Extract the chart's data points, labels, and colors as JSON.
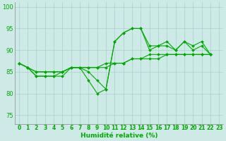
{
  "xlabel": "Humidité relative (%)",
  "xlim": [
    -0.5,
    23.5
  ],
  "ylim": [
    73,
    101
  ],
  "yticks": [
    75,
    80,
    85,
    90,
    95,
    100
  ],
  "xticks": [
    0,
    1,
    2,
    3,
    4,
    5,
    6,
    7,
    8,
    9,
    10,
    11,
    12,
    13,
    14,
    15,
    16,
    17,
    18,
    19,
    20,
    21,
    22,
    23
  ],
  "background_color": "#ceeae6",
  "grid_color": "#aacfcc",
  "line_color": "#00aa00",
  "lines": [
    {
      "x": [
        0,
        1,
        2,
        3,
        4,
        5,
        6,
        7,
        8,
        9,
        10,
        11,
        12,
        13,
        14,
        15,
        16,
        17,
        18,
        19,
        20,
        21,
        22
      ],
      "y": [
        87,
        86,
        84,
        84,
        84,
        84,
        86,
        86,
        83,
        80,
        81,
        92,
        94,
        95,
        95,
        90,
        91,
        92,
        90,
        92,
        91,
        92,
        89
      ]
    },
    {
      "x": [
        0,
        1,
        2,
        3,
        4,
        5,
        6,
        7,
        8,
        9,
        10,
        11,
        12,
        13,
        14,
        15,
        16,
        17,
        18,
        19,
        20,
        21,
        22
      ],
      "y": [
        87,
        86,
        84,
        84,
        84,
        85,
        86,
        86,
        85,
        83,
        81,
        92,
        94,
        95,
        95,
        91,
        91,
        91,
        90,
        92,
        90,
        91,
        89
      ]
    },
    {
      "x": [
        0,
        1,
        2,
        3,
        4,
        5,
        6,
        7,
        8,
        9,
        10,
        11,
        12,
        13,
        14,
        15,
        16,
        17,
        18,
        19,
        20,
        21,
        22
      ],
      "y": [
        87,
        86,
        85,
        85,
        85,
        85,
        86,
        86,
        86,
        86,
        86,
        87,
        87,
        88,
        88,
        89,
        89,
        89,
        89,
        89,
        89,
        89,
        89
      ]
    },
    {
      "x": [
        0,
        1,
        2,
        3,
        4,
        5,
        6,
        7,
        8,
        9,
        10,
        11,
        12,
        13,
        14,
        15,
        16,
        17,
        18,
        19,
        20,
        21,
        22
      ],
      "y": [
        87,
        86,
        85,
        85,
        85,
        85,
        86,
        86,
        86,
        86,
        87,
        87,
        87,
        88,
        88,
        88,
        88,
        89,
        89,
        89,
        89,
        89,
        89
      ]
    }
  ],
  "tick_fontsize": 5.5,
  "xlabel_fontsize": 6.5,
  "ytick_fontsize": 6.0
}
